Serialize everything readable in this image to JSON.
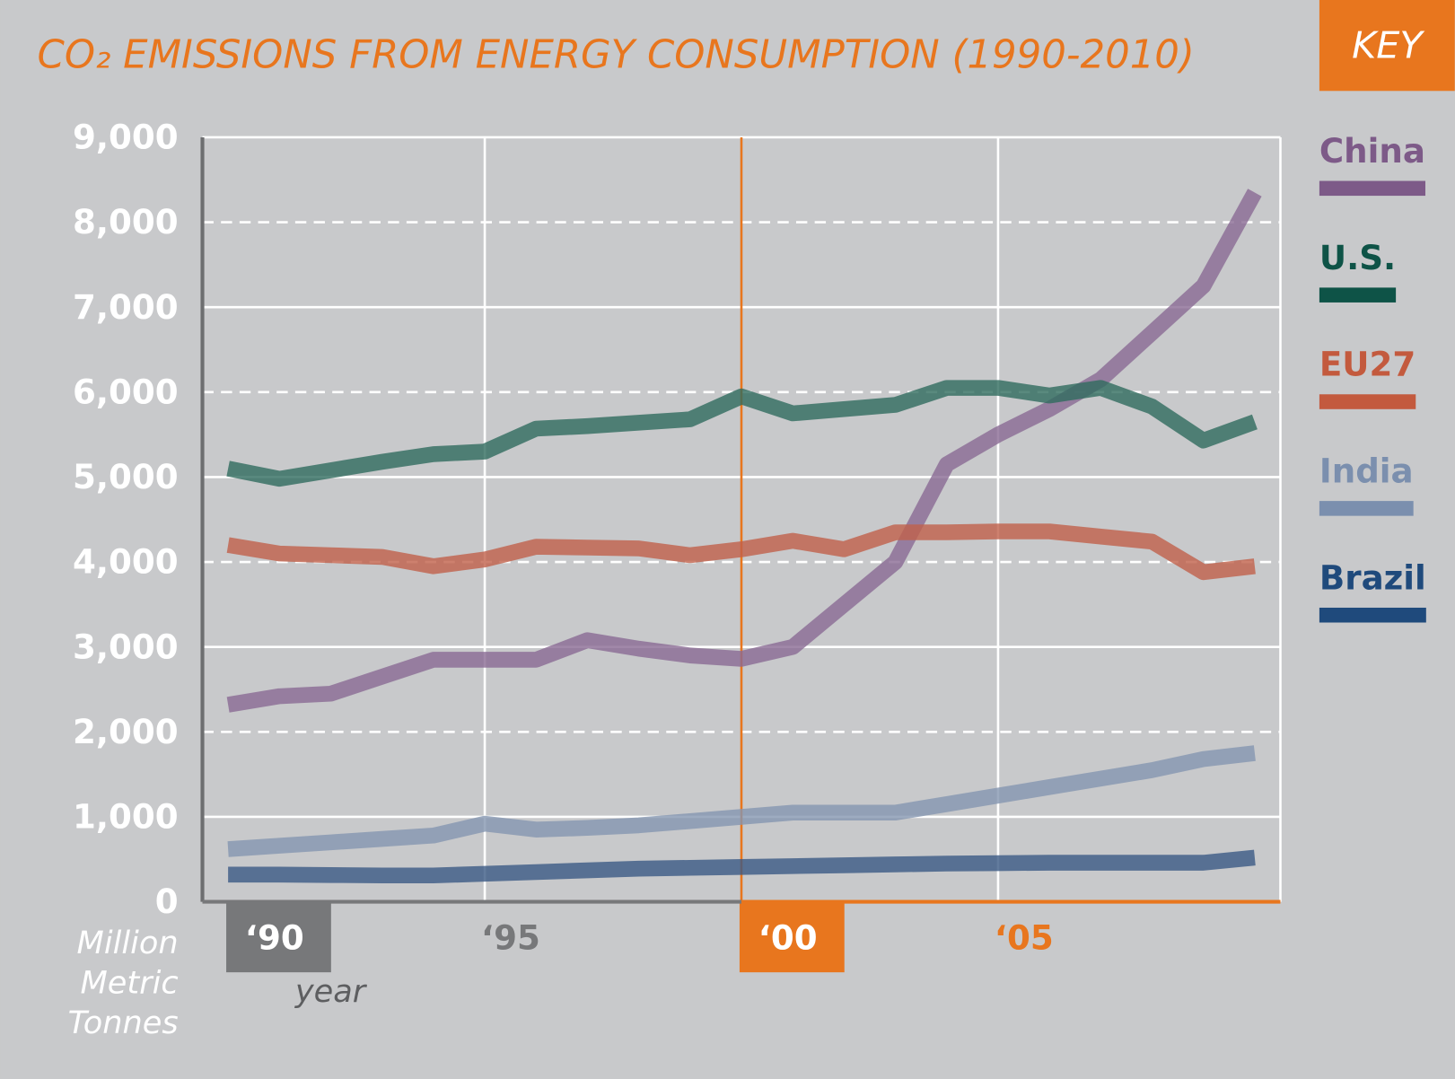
{
  "chart_data": {
    "type": "line",
    "title": "CO₂ EMISSIONS FROM ENERGY CONSUMPTION (1990-2010)",
    "legend_title": "KEY",
    "ylabel": [
      "Million",
      "Metric",
      "Tonnes"
    ],
    "xlabel": "year",
    "x": [
      1990,
      1991,
      1992,
      1993,
      1994,
      1995,
      1996,
      1997,
      1998,
      1999,
      2000,
      2001,
      2002,
      2003,
      2004,
      2005,
      2006,
      2007,
      2008,
      2009,
      2010
    ],
    "xlim": [
      1989.5,
      2010.5
    ],
    "xticks": [
      {
        "value": 1990,
        "label": "‘90"
      },
      {
        "value": 1995,
        "label": "‘95"
      },
      {
        "value": 2000,
        "label": "‘00"
      },
      {
        "value": 2005,
        "label": "‘05"
      }
    ],
    "ylim": [
      0,
      9000
    ],
    "yticks": [
      0,
      {
        "value": 1000,
        "label": "1,000"
      },
      {
        "value": 2000,
        "label": "2,000"
      },
      {
        "value": 3000,
        "label": "3,000"
      },
      {
        "value": 4000,
        "label": "4,000"
      },
      {
        "value": 5000,
        "label": "5,000"
      },
      {
        "value": 6000,
        "label": "6,000"
      },
      {
        "value": 7000,
        "label": "7,000"
      },
      {
        "value": 8000,
        "label": "8,000"
      },
      {
        "value": 9000,
        "label": "9,000"
      }
    ],
    "grid": true,
    "legend": "right",
    "series": [
      {
        "name": "China",
        "color": "#8a6a93",
        "legend_color": "#7d5a88",
        "values": [
          2320,
          2420,
          2450,
          2650,
          2850,
          2850,
          2850,
          3080,
          2980,
          2900,
          2860,
          3000,
          3500,
          4000,
          5150,
          5500,
          5800,
          6150,
          6700,
          7250,
          8350
        ]
      },
      {
        "name": "U.S.",
        "color": "#2f6b5e",
        "legend_color": "#0e5347",
        "values": [
          5100,
          4980,
          5080,
          5180,
          5270,
          5300,
          5570,
          5600,
          5640,
          5680,
          5950,
          5750,
          5800,
          5850,
          6050,
          6050,
          5960,
          6050,
          5830,
          5430,
          5650
        ]
      },
      {
        "name": "EU27",
        "color": "#c0604a",
        "legend_color": "#c35a3e",
        "values": [
          4200,
          4100,
          4080,
          4060,
          3950,
          4030,
          4180,
          4170,
          4160,
          4080,
          4150,
          4250,
          4150,
          4350,
          4350,
          4360,
          4360,
          4300,
          4240,
          3880,
          3950
        ]
      },
      {
        "name": "India",
        "color": "#8496b0",
        "legend_color": "#7b8fae",
        "values": [
          620,
          660,
          700,
          740,
          780,
          920,
          850,
          870,
          900,
          950,
          1000,
          1050,
          1050,
          1050,
          1150,
          1250,
          1350,
          1450,
          1550,
          1680,
          1750
        ]
      },
      {
        "name": "Brazil",
        "color": "#3b5a84",
        "legend_color": "#1f4a7c",
        "values": [
          320,
          320,
          315,
          310,
          310,
          330,
          350,
          370,
          390,
          400,
          410,
          420,
          430,
          440,
          450,
          455,
          460,
          460,
          460,
          460,
          520
        ]
      }
    ]
  }
}
